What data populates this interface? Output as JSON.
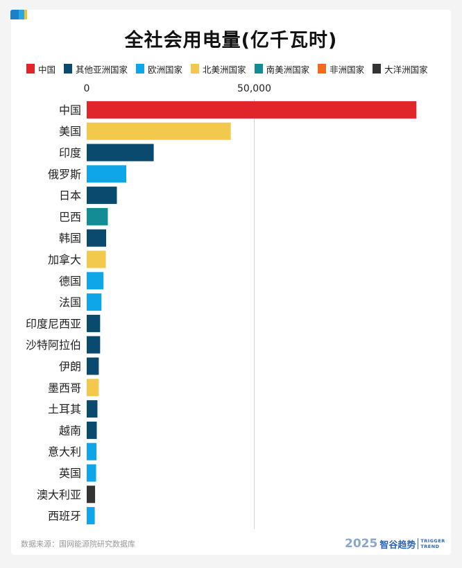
{
  "chart_data": {
    "type": "bar",
    "orientation": "horizontal",
    "title": "全社会用电量(亿千瓦时)",
    "xlim": [
      0,
      100000
    ],
    "x_ticks": [
      {
        "value": 0,
        "label": "0"
      },
      {
        "value": 50000,
        "label": "50,000"
      }
    ],
    "gridlines": [
      50000
    ],
    "legend_position": "top",
    "legend": [
      {
        "name": "中国",
        "color": "#e0252b"
      },
      {
        "name": "其他亚洲国家",
        "color": "#0b4a6f"
      },
      {
        "name": "欧洲国家",
        "color": "#0ea5e9"
      },
      {
        "name": "北美洲国家",
        "color": "#f2c94c"
      },
      {
        "name": "南美洲国家",
        "color": "#138c95"
      },
      {
        "name": "非洲国家",
        "color": "#f26a1b"
      },
      {
        "name": "大洋洲国家",
        "color": "#333333"
      }
    ],
    "bars": [
      {
        "label": "中国",
        "value": 98400,
        "group": "中国"
      },
      {
        "label": "美国",
        "value": 43000,
        "group": "北美洲国家"
      },
      {
        "label": "印度",
        "value": 20000,
        "group": "其他亚洲国家"
      },
      {
        "label": "俄罗斯",
        "value": 11800,
        "group": "欧洲国家"
      },
      {
        "label": "日本",
        "value": 9000,
        "group": "其他亚洲国家"
      },
      {
        "label": "巴西",
        "value": 6300,
        "group": "南美洲国家"
      },
      {
        "label": "韩国",
        "value": 5800,
        "group": "其他亚洲国家"
      },
      {
        "label": "加拿大",
        "value": 5700,
        "group": "北美洲国家"
      },
      {
        "label": "德国",
        "value": 5000,
        "group": "欧洲国家"
      },
      {
        "label": "法国",
        "value": 4400,
        "group": "欧洲国家"
      },
      {
        "label": "印度尼西亚",
        "value": 4000,
        "group": "其他亚洲国家"
      },
      {
        "label": "沙特阿拉伯",
        "value": 4000,
        "group": "其他亚洲国家"
      },
      {
        "label": "伊朗",
        "value": 3600,
        "group": "其他亚洲国家"
      },
      {
        "label": "墨西哥",
        "value": 3600,
        "group": "北美洲国家"
      },
      {
        "label": "土耳其",
        "value": 3200,
        "group": "其他亚洲国家"
      },
      {
        "label": "越南",
        "value": 3000,
        "group": "其他亚洲国家"
      },
      {
        "label": "意大利",
        "value": 2900,
        "group": "欧洲国家"
      },
      {
        "label": "英国",
        "value": 2800,
        "group": "欧洲国家"
      },
      {
        "label": "澳大利亚",
        "value": 2500,
        "group": "大洋洲国家"
      },
      {
        "label": "西班牙",
        "value": 2400,
        "group": "欧洲国家"
      }
    ]
  },
  "footer": {
    "source": "数据来源：国网能源院研究数据库",
    "brand_year": "2025",
    "brand_name": "智谷趋势",
    "brand_en_1": "TRIGGER",
    "brand_en_2": "TREND"
  }
}
